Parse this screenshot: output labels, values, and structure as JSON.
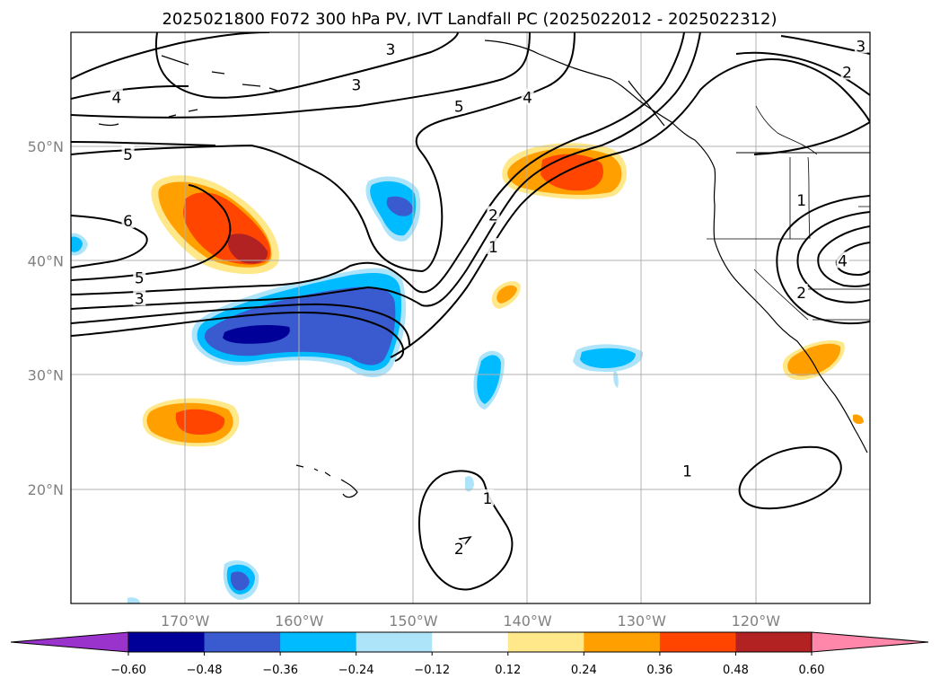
{
  "map": {
    "title": "2025021800 F072 300 hPa PV, IVT Landfall PC (2025022012 - 2025022312)",
    "lat_ticks": [
      {
        "label": "50°N",
        "lat": 50
      },
      {
        "label": "40°N",
        "lat": 40
      },
      {
        "label": "30°N",
        "lat": 30
      },
      {
        "label": "20°N",
        "lat": 20
      }
    ],
    "lon_ticks": [
      {
        "label": "170°W",
        "lon": -170
      },
      {
        "label": "160°W",
        "lon": -160
      },
      {
        "label": "150°W",
        "lon": -150
      },
      {
        "label": "140°W",
        "lon": -140
      },
      {
        "label": "130°W",
        "lon": -130
      },
      {
        "label": "120°W",
        "lon": -120
      }
    ],
    "extent": {
      "lon_min": -180,
      "lon_max": -110,
      "lat_min": 10,
      "lat_max": 60
    },
    "contour_labels": [
      {
        "text": "4",
        "lon": -176,
        "lat": 54.3
      },
      {
        "text": "5",
        "lon": -175,
        "lat": 49.3
      },
      {
        "text": "6",
        "lon": -175,
        "lat": 43.5
      },
      {
        "text": "5",
        "lon": -174,
        "lat": 38.5
      },
      {
        "text": "3",
        "lon": -174,
        "lat": 36.7
      },
      {
        "text": "5",
        "lon": -146,
        "lat": 53.5
      },
      {
        "text": "4",
        "lon": -140,
        "lat": 54.3
      },
      {
        "text": "2",
        "lon": -143,
        "lat": 44.0
      },
      {
        "text": "1",
        "lon": -143,
        "lat": 41.2
      },
      {
        "text": "3",
        "lon": -152,
        "lat": 58.5
      },
      {
        "text": "3",
        "lon": -155,
        "lat": 55.4
      },
      {
        "text": "2",
        "lon": -112,
        "lat": 56.5
      },
      {
        "text": "3",
        "lon": -110.8,
        "lat": 58.8
      },
      {
        "text": "1",
        "lon": -116,
        "lat": 45.3
      },
      {
        "text": "4",
        "lon": -112.4,
        "lat": 40.0
      },
      {
        "text": "2",
        "lon": -116,
        "lat": 37.2
      },
      {
        "text": "1",
        "lon": -143.5,
        "lat": 19.2
      },
      {
        "text": "2",
        "lon": -146,
        "lat": 14.8
      },
      {
        "text": "1",
        "lon": -126,
        "lat": 21.6
      }
    ],
    "colors": {
      "grid": "#b0b0b0",
      "contour": "#000000",
      "coast": "#000000"
    }
  },
  "colorbar": {
    "ticks": [
      "−0.60",
      "−0.48",
      "−0.36",
      "−0.24",
      "−0.12",
      "0.12",
      "0.24",
      "0.36",
      "0.48",
      "0.60"
    ],
    "levels": [
      -0.6,
      -0.48,
      -0.36,
      -0.24,
      -0.12,
      0.12,
      0.24,
      0.36,
      0.48,
      0.6
    ],
    "under_color": "#9933cc",
    "over_color": "#ff88aa",
    "colors": [
      "#000099",
      "#3a5bd0",
      "#00bbff",
      "#aee4fa",
      "#ffffff",
      "#ffe88a",
      "#ffa000",
      "#ff4500",
      "#b22222"
    ]
  }
}
